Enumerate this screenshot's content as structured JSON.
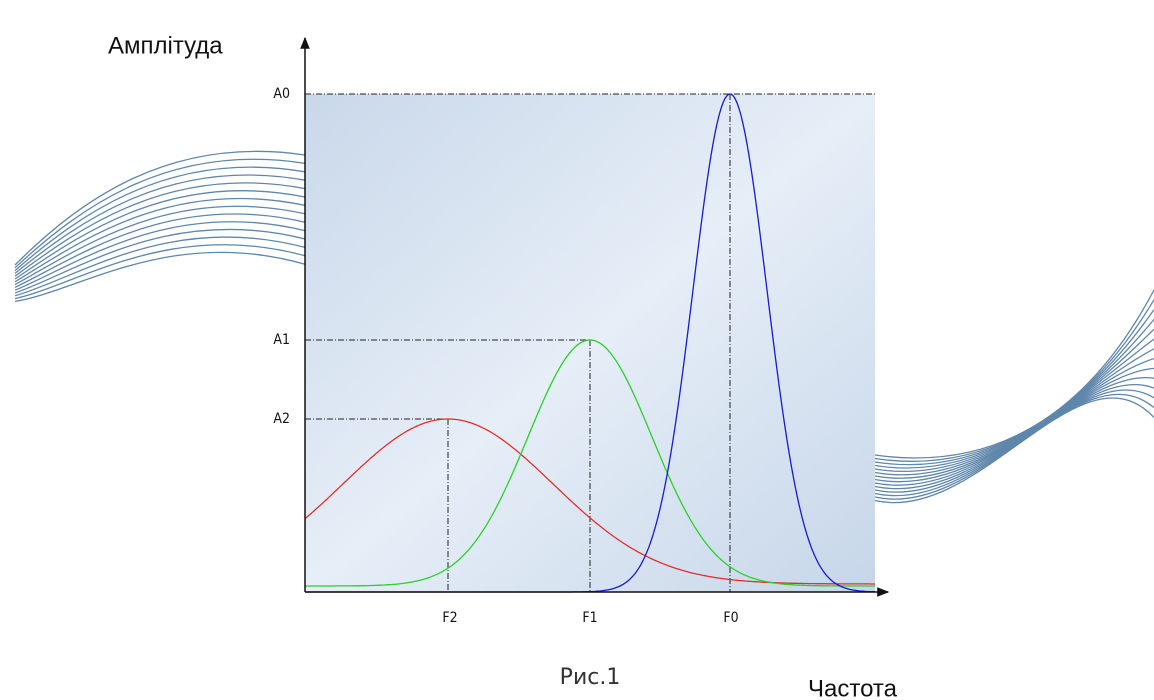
{
  "axes": {
    "y_label": "Амплітуда",
    "x_label": "Частота"
  },
  "levels": [
    "A0",
    "A1",
    "A2"
  ],
  "frequencies": [
    "F2",
    "F1",
    "F0"
  ],
  "caption": "Рис.1"
}
